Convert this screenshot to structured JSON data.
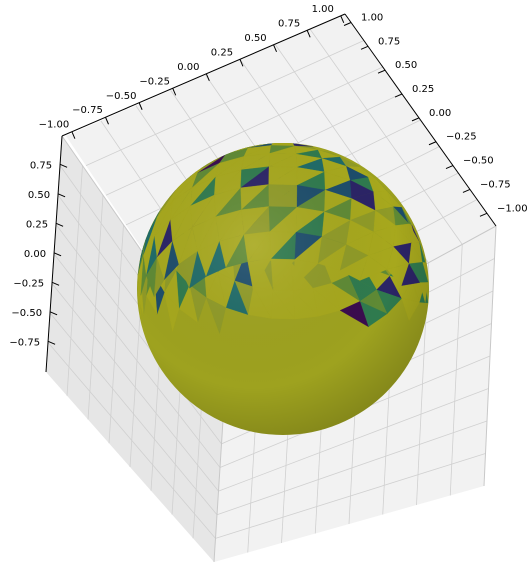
{
  "chart_data": {
    "type": "surface3d",
    "title": "",
    "surface": "triangulated unit sphere",
    "radius": 1.0,
    "colormap": "viridis",
    "colors": {
      "pane": "#f2f2f2",
      "pane_dark": "#e6e6e6",
      "grid": "#d0d0d0",
      "axis": "#000000",
      "dominant_face": "#9ea21f",
      "face_palette": [
        "#a7a81d",
        "#8f9a27",
        "#5f8a35",
        "#2f7a4e",
        "#1f6b68",
        "#1d4d6b",
        "#2b2466",
        "#3a0c4e"
      ]
    },
    "x_axis": {
      "ticks": [
        -1.0,
        -0.75,
        -0.5,
        -0.25,
        0.0,
        0.25,
        0.5,
        0.75,
        1.0
      ],
      "tick_labels": [
        "−1.00",
        "−0.75",
        "−0.50",
        "−0.25",
        "0.00",
        "0.25",
        "0.50",
        "0.75",
        "1.00"
      ]
    },
    "y_axis": {
      "ticks": [
        1.0,
        0.75,
        0.5,
        0.25,
        0.0,
        -0.25,
        -0.5,
        -0.75,
        -1.0
      ],
      "tick_labels": [
        "1.00",
        "0.75",
        "0.50",
        "0.25",
        "0.00",
        "−0.25",
        "−0.50",
        "−0.75",
        "−1.00"
      ]
    },
    "z_axis": {
      "ticks": [
        0.75,
        0.5,
        0.25,
        0.0,
        -0.25,
        -0.5,
        -0.75
      ],
      "tick_labels": [
        "0.75",
        "0.50",
        "0.25",
        "0.00",
        "−0.25",
        "−0.50",
        "−0.75"
      ]
    },
    "grid": true
  }
}
